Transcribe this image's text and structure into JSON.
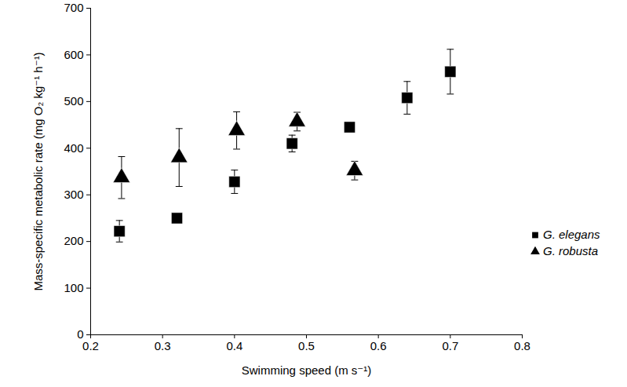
{
  "chart_data": {
    "type": "scatter",
    "x_label": "Swimming speed (m s⁻¹)",
    "y_label": "Mass-specific metabolic rate (mg O₂ kg⁻¹ h⁻¹)",
    "xlim": [
      0.2,
      0.8
    ],
    "xticks": [
      0.2,
      0.3,
      0.4,
      0.5,
      0.6,
      0.7,
      0.8
    ],
    "ylim": [
      0,
      700
    ],
    "yticks": [
      0,
      100,
      200,
      300,
      400,
      500,
      600,
      700
    ],
    "grid": false,
    "legend": "right",
    "series": [
      {
        "name": "G. elegans",
        "color": "#000000",
        "marker": "square",
        "x": [
          0.24,
          0.32,
          0.4,
          0.48,
          0.56,
          0.64,
          0.7
        ],
        "values": [
          222,
          250,
          328,
          410,
          445,
          508,
          564
        ],
        "errors": [
          23,
          8,
          25,
          18,
          10,
          35,
          48
        ]
      },
      {
        "name": "G. robusta",
        "color": "#000000",
        "marker": "triangle",
        "x": [
          0.243,
          0.323,
          0.403,
          0.487,
          0.567
        ],
        "values": [
          337,
          380,
          438,
          457,
          352
        ],
        "errors": [
          45,
          62,
          40,
          20,
          20
        ]
      }
    ]
  }
}
